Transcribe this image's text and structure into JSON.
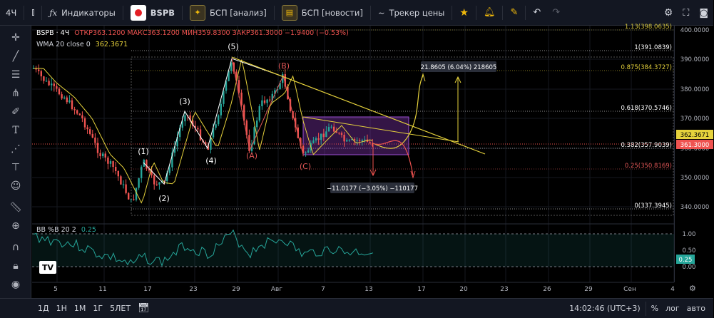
{
  "toolbar": {
    "interval": "4Ч",
    "indicators_label": "Индикаторы",
    "symbol": "BSPB",
    "tab1_label": "БСП [анализ]",
    "tab2_label": "БСП [новости]",
    "tracker_label": "Трекер цены"
  },
  "legend": {
    "symbol": "BSPB · 4Ч",
    "ohlc_text": "ОТКР363.1200  МАКС363.1200  МИН359.8300  ЗАКР361.3000  −1.9400 (−0.53%)",
    "wma_label": "WMA 20 close 0",
    "wma_value": "362.3671",
    "bb_label": "BB %B 20 2",
    "bb_value": "0.25"
  },
  "price_axis": [
    "400.0000",
    "390.0000",
    "380.0000",
    "370.0000",
    "360.0000",
    "350.0000",
    "340.0000"
  ],
  "price_badges": {
    "wma": "362.3671",
    "last": "361.3000",
    "bb": "0.25"
  },
  "bb_axis": [
    "1.00",
    "0.50",
    "0.00"
  ],
  "time_axis": [
    "5",
    "11",
    "17",
    "23",
    "29",
    "Авг",
    "7",
    "13",
    "17",
    "20",
    "23",
    "26",
    "29",
    "Сен",
    "4"
  ],
  "fib_levels": [
    {
      "label": "1.13(398.0635)",
      "color": "#d4c540"
    },
    {
      "label": "1(391.0839)",
      "color": "#ffffff"
    },
    {
      "label": "0.875(384.3727)",
      "color": "#e6d23c"
    },
    {
      "label": "0.618(370.5746)",
      "color": "#ffffff"
    },
    {
      "label": "0.382(357.9039)",
      "color": "#ffffff"
    },
    {
      "label": "0.25(350.8169)",
      "color": "#e05656"
    },
    {
      "label": "0(337.3945)",
      "color": "#ffffff"
    }
  ],
  "waves": {
    "w1": "(1)",
    "w2": "(2)",
    "w3": "(3)",
    "w4": "(4)",
    "w5": "(5)",
    "wA": "(A)",
    "wB": "(B)",
    "wC": "(C)"
  },
  "annotations": {
    "up": "21.8605 (6.04%) 218605",
    "down": "−11.0177 (−3.05%) −110177"
  },
  "bottom": {
    "ranges": [
      "1Д",
      "1Н",
      "1М",
      "1Г",
      "5ЛЕТ"
    ],
    "clock": "14:02:46 (UTC+3)",
    "percent": "%",
    "log": "лог",
    "auto": "авто"
  },
  "colors": {
    "accent": "#f0b90b",
    "up": "#26a69a",
    "down": "#ef5350",
    "wave_red": "#e05656",
    "wma": "#e6d23c"
  }
}
